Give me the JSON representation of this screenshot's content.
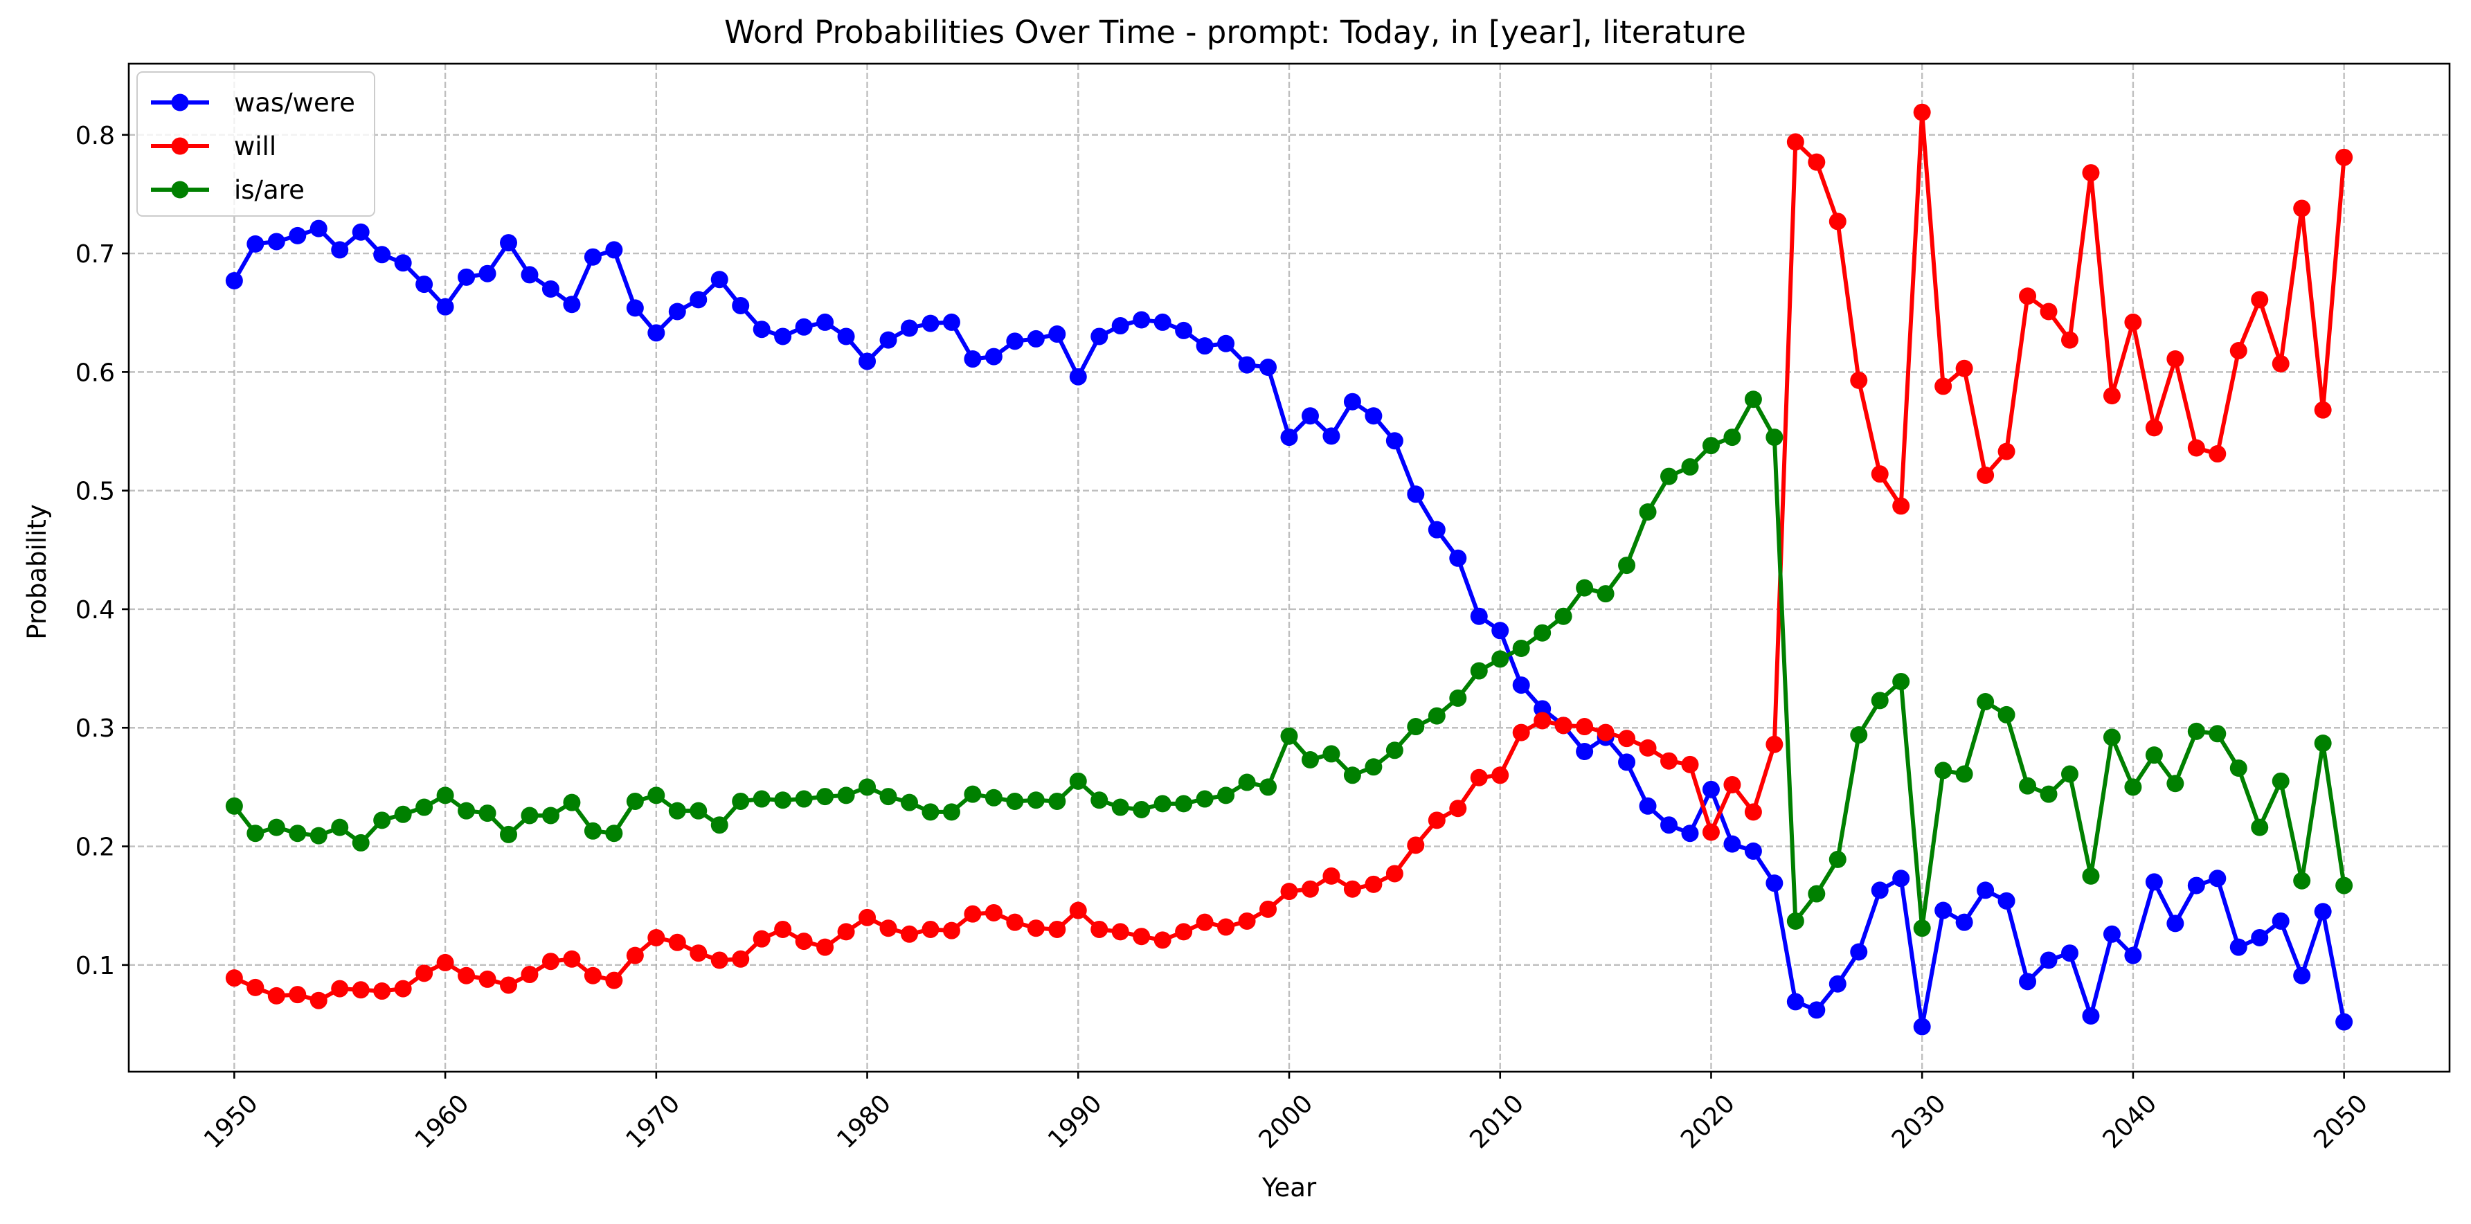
{
  "chart_data": {
    "type": "line",
    "title": "Word Probabilities Over Time - prompt: Today, in [year], literature",
    "xlabel": "Year",
    "ylabel": "Probability",
    "xlim": [
      1945,
      2055
    ],
    "ylim": [
      0.01,
      0.86
    ],
    "xticks": [
      1950,
      1960,
      1970,
      1980,
      1990,
      2000,
      2010,
      2020,
      2030,
      2040,
      2050
    ],
    "yticks": [
      0.1,
      0.2,
      0.3,
      0.4,
      0.5,
      0.6,
      0.7,
      0.8
    ],
    "xtick_rotation_deg": 45,
    "grid": true,
    "legend_position": "top-left",
    "x_start": 1950,
    "x_end": 2050,
    "series": [
      {
        "name": "was/were",
        "color": "#0000ff",
        "marker": "circle",
        "values": [
          0.677,
          0.708,
          0.71,
          0.715,
          0.721,
          0.703,
          0.718,
          0.699,
          0.692,
          0.674,
          0.655,
          0.68,
          0.683,
          0.709,
          0.682,
          0.67,
          0.657,
          0.697,
          0.703,
          0.654,
          0.633,
          0.651,
          0.661,
          0.678,
          0.656,
          0.636,
          0.63,
          0.638,
          0.642,
          0.63,
          0.609,
          0.627,
          0.637,
          0.641,
          0.642,
          0.611,
          0.613,
          0.626,
          0.628,
          0.632,
          0.596,
          0.63,
          0.639,
          0.644,
          0.642,
          0.635,
          0.622,
          0.624,
          0.606,
          0.604,
          0.545,
          0.563,
          0.546,
          0.575,
          0.563,
          0.542,
          0.497,
          0.467,
          0.443,
          0.394,
          0.382,
          0.336,
          0.316,
          0.302,
          0.28,
          0.292,
          0.271,
          0.234,
          0.218,
          0.211,
          0.248,
          0.202,
          0.196,
          0.169,
          0.069,
          0.062,
          0.084,
          0.111,
          0.163,
          0.173,
          0.048,
          0.146,
          0.136,
          0.163,
          0.154,
          0.086,
          0.104,
          0.11,
          0.057,
          0.126,
          0.108,
          0.17,
          0.135,
          0.167,
          0.173,
          0.115,
          0.123,
          0.137,
          0.091,
          0.145,
          0.052
        ]
      },
      {
        "name": "will",
        "color": "#ff0000",
        "marker": "circle",
        "values": [
          0.089,
          0.081,
          0.074,
          0.075,
          0.07,
          0.08,
          0.079,
          0.078,
          0.08,
          0.093,
          0.102,
          0.091,
          0.088,
          0.083,
          0.092,
          0.103,
          0.105,
          0.091,
          0.087,
          0.108,
          0.123,
          0.119,
          0.11,
          0.104,
          0.105,
          0.122,
          0.13,
          0.12,
          0.115,
          0.128,
          0.14,
          0.131,
          0.126,
          0.13,
          0.129,
          0.143,
          0.144,
          0.136,
          0.131,
          0.13,
          0.146,
          0.13,
          0.128,
          0.124,
          0.121,
          0.128,
          0.136,
          0.132,
          0.137,
          0.147,
          0.162,
          0.164,
          0.175,
          0.164,
          0.168,
          0.177,
          0.201,
          0.222,
          0.232,
          0.258,
          0.26,
          0.296,
          0.306,
          0.302,
          0.301,
          0.296,
          0.291,
          0.283,
          0.272,
          0.269,
          0.212,
          0.252,
          0.229,
          0.286,
          0.794,
          0.777,
          0.727,
          0.593,
          0.514,
          0.487,
          0.819,
          0.588,
          0.603,
          0.513,
          0.533,
          0.664,
          0.651,
          0.627,
          0.768,
          0.58,
          0.642,
          0.553,
          0.611,
          0.536,
          0.531,
          0.618,
          0.661,
          0.607,
          0.738,
          0.568,
          0.781
        ]
      },
      {
        "name": "is/are",
        "color": "#008000",
        "marker": "circle",
        "values": [
          0.234,
          0.211,
          0.216,
          0.211,
          0.209,
          0.216,
          0.203,
          0.222,
          0.227,
          0.233,
          0.243,
          0.23,
          0.228,
          0.21,
          0.226,
          0.226,
          0.237,
          0.213,
          0.211,
          0.238,
          0.243,
          0.23,
          0.23,
          0.218,
          0.238,
          0.24,
          0.239,
          0.24,
          0.242,
          0.243,
          0.25,
          0.242,
          0.237,
          0.229,
          0.229,
          0.244,
          0.241,
          0.238,
          0.239,
          0.238,
          0.255,
          0.239,
          0.233,
          0.231,
          0.236,
          0.236,
          0.24,
          0.243,
          0.254,
          0.25,
          0.293,
          0.273,
          0.278,
          0.26,
          0.267,
          0.281,
          0.301,
          0.31,
          0.325,
          0.348,
          0.358,
          0.367,
          0.38,
          0.394,
          0.418,
          0.413,
          0.437,
          0.482,
          0.512,
          0.52,
          0.538,
          0.545,
          0.577,
          0.545,
          0.137,
          0.16,
          0.189,
          0.294,
          0.323,
          0.339,
          0.131,
          0.264,
          0.261,
          0.322,
          0.311,
          0.251,
          0.244,
          0.261,
          0.175,
          0.292,
          0.25,
          0.277,
          0.253,
          0.297,
          0.295,
          0.266,
          0.216,
          0.255,
          0.171,
          0.287,
          0.167
        ]
      }
    ]
  }
}
